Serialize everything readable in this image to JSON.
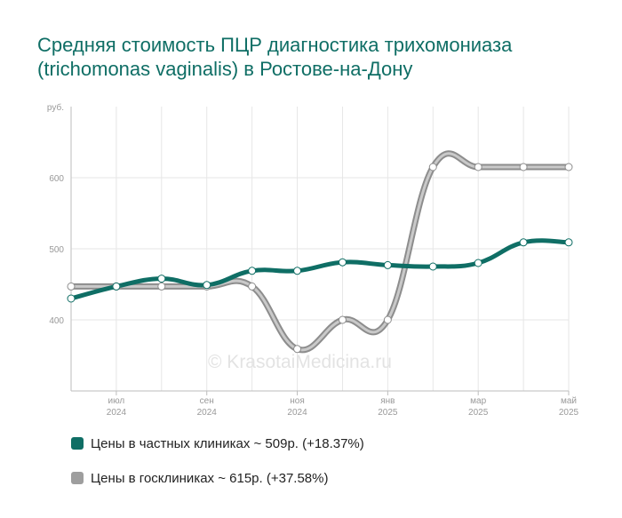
{
  "chart_data": {
    "type": "line",
    "title": "Средняя стоимость ПЦР диагностика трихомониаза (trichomonas vaginalis) в Ростове-на-Дону",
    "y_unit_label": "руб.",
    "ylim": [
      300,
      700
    ],
    "y_ticks": [
      400,
      500,
      600
    ],
    "x_ticks": [
      {
        "month": "июл",
        "year": "2024"
      },
      {
        "month": "сен",
        "year": "2024"
      },
      {
        "month": "ноя",
        "year": "2024"
      },
      {
        "month": "янв",
        "year": "2025"
      },
      {
        "month": "мар",
        "year": "2025"
      },
      {
        "month": "май",
        "year": "2025"
      }
    ],
    "x": [
      "2024-06",
      "2024-07",
      "2024-08",
      "2024-09",
      "2024-10",
      "2024-11",
      "2024-12",
      "2025-01",
      "2025-02",
      "2025-03",
      "2025-04",
      "2025-05"
    ],
    "series": [
      {
        "name": "Цены в частных клиниках",
        "color": "#0f6e65",
        "values": [
          430,
          447,
          458,
          449,
          469,
          469,
          481,
          477,
          475,
          480,
          509,
          509
        ]
      },
      {
        "name": "Цены в госклиниках",
        "color": "#9e9e9e",
        "values": [
          447,
          447,
          447,
          447,
          447,
          359,
          400,
          400,
          615,
          615,
          615,
          615
        ]
      }
    ],
    "grid": true,
    "legend_position": "bottom-left"
  },
  "legend": [
    {
      "text": "Цены в частных клиниках ~ 509р. (+18.37%)",
      "color": "#0f6e65"
    },
    {
      "text": "Цены в госклиниках ~ 615р. (+37.58%)",
      "color": "#9e9e9e"
    }
  ],
  "watermark": "© KrasotaiMedicina.ru"
}
